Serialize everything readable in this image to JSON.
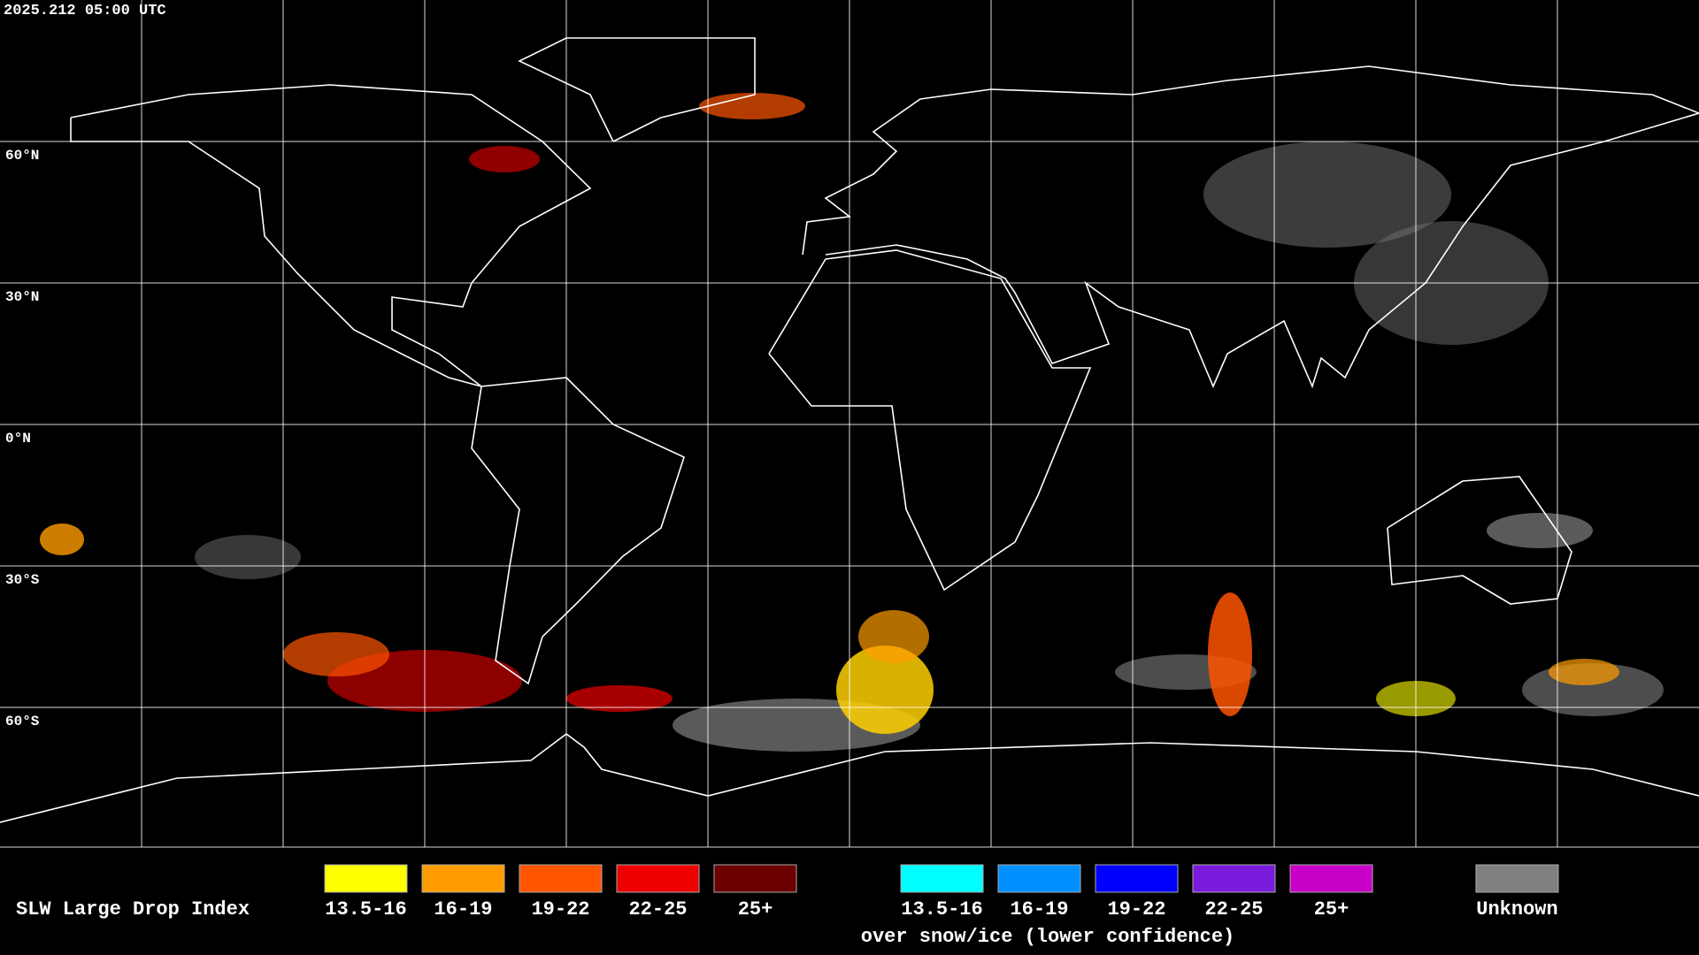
{
  "timestamp": "2025.212 05:00 UTC",
  "latitude_labels": [
    "60°N",
    "30°N",
    "0°N",
    "30°S",
    "60°S"
  ],
  "legend": {
    "title": "SLW Large Drop Index",
    "items": [
      {
        "label": "13.5-16",
        "color": "#ffff00"
      },
      {
        "label": "16-19",
        "color": "#ff9c00"
      },
      {
        "label": "19-22",
        "color": "#ff5500"
      },
      {
        "label": "22-25",
        "color": "#ee0000"
      },
      {
        "label": "25+",
        "color": "#6b0000"
      }
    ],
    "snow_items": [
      {
        "label": "13.5-16",
        "color": "#00ffff"
      },
      {
        "label": "16-19",
        "color": "#0090ff"
      },
      {
        "label": "19-22",
        "color": "#0000ff"
      },
      {
        "label": "22-25",
        "color": "#7a1cdc"
      },
      {
        "label": "25+",
        "color": "#c800c8"
      }
    ],
    "snow_caption": "over snow/ice (lower confidence)",
    "unknown": {
      "label": "Unknown",
      "color": "#808080"
    }
  }
}
